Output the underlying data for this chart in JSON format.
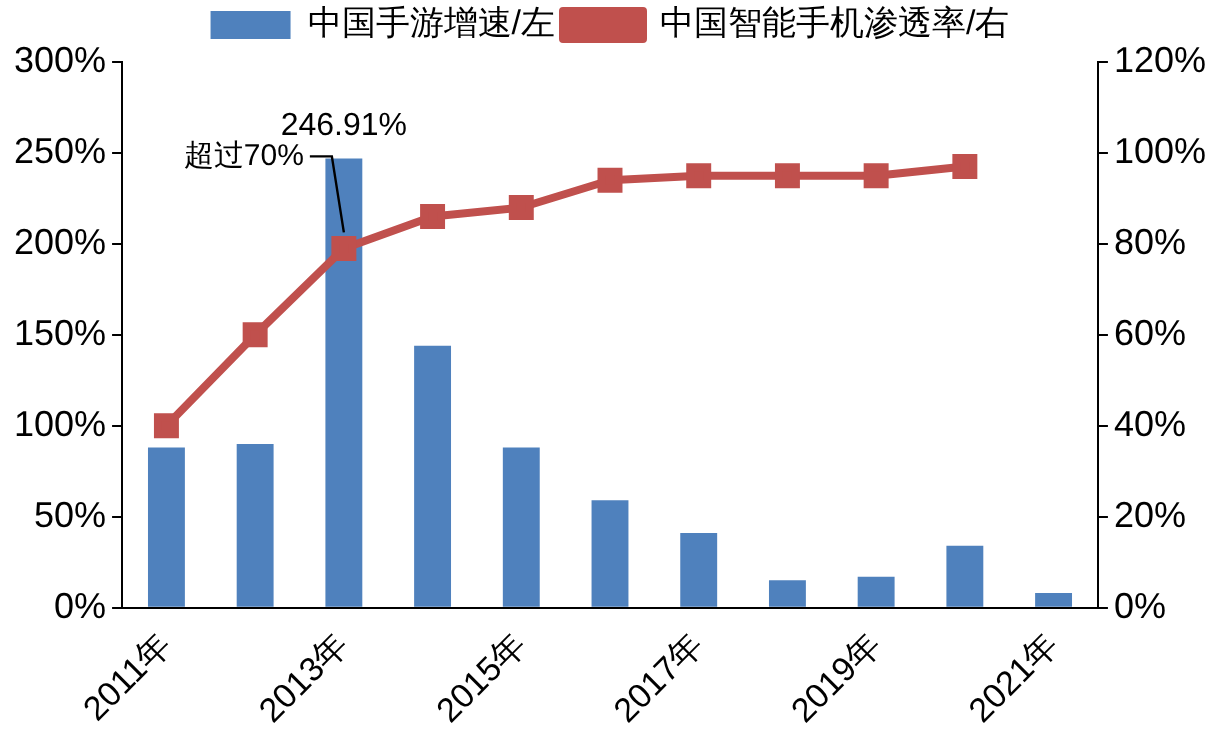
{
  "chart_data": {
    "type": "bar",
    "categories": [
      "2011年",
      null,
      "2013年",
      null,
      "2015年",
      null,
      "2017年",
      null,
      "2019年",
      null,
      "2021年"
    ],
    "series": [
      {
        "name": "中国手游增速/左",
        "color": "#4f81bd",
        "values": [
          88,
          90,
          246.91,
          144,
          88,
          59,
          41,
          15,
          17,
          34,
          8
        ],
        "value_labels": [
          null,
          null,
          "246.91%",
          null,
          null,
          null,
          null,
          null,
          null,
          null,
          null
        ]
      },
      {
        "name": "中国智能手机渗透率/右",
        "type": "line",
        "axis": "y2",
        "color": "#c0504d",
        "marker": "square",
        "values": [
          40,
          60,
          79,
          86,
          88,
          94,
          95,
          95,
          95,
          97,
          null
        ]
      }
    ],
    "ylim": [
      0,
      300
    ],
    "yticks": [
      {
        "value": 0,
        "label": "0%"
      },
      {
        "value": 50,
        "label": "50%"
      },
      {
        "value": 100,
        "label": "100%"
      },
      {
        "value": 150,
        "label": "150%"
      },
      {
        "value": 200,
        "label": "200%"
      },
      {
        "value": 250,
        "label": "250%"
      },
      {
        "value": 300,
        "label": "300%"
      }
    ],
    "y2lim": [
      0,
      120
    ],
    "y2ticks": [
      {
        "value": 0,
        "label": "0%"
      },
      {
        "value": 20,
        "label": "20%"
      },
      {
        "value": 40,
        "label": "40%"
      },
      {
        "value": 60,
        "label": "60%"
      },
      {
        "value": 80,
        "label": "80%"
      },
      {
        "value": 100,
        "label": "100%"
      },
      {
        "value": 120,
        "label": "120%"
      }
    ],
    "annotations": [
      {
        "text": "超过70%",
        "x": "2013年",
        "y": 197.5
      }
    ],
    "legend": "top",
    "grid": false
  }
}
